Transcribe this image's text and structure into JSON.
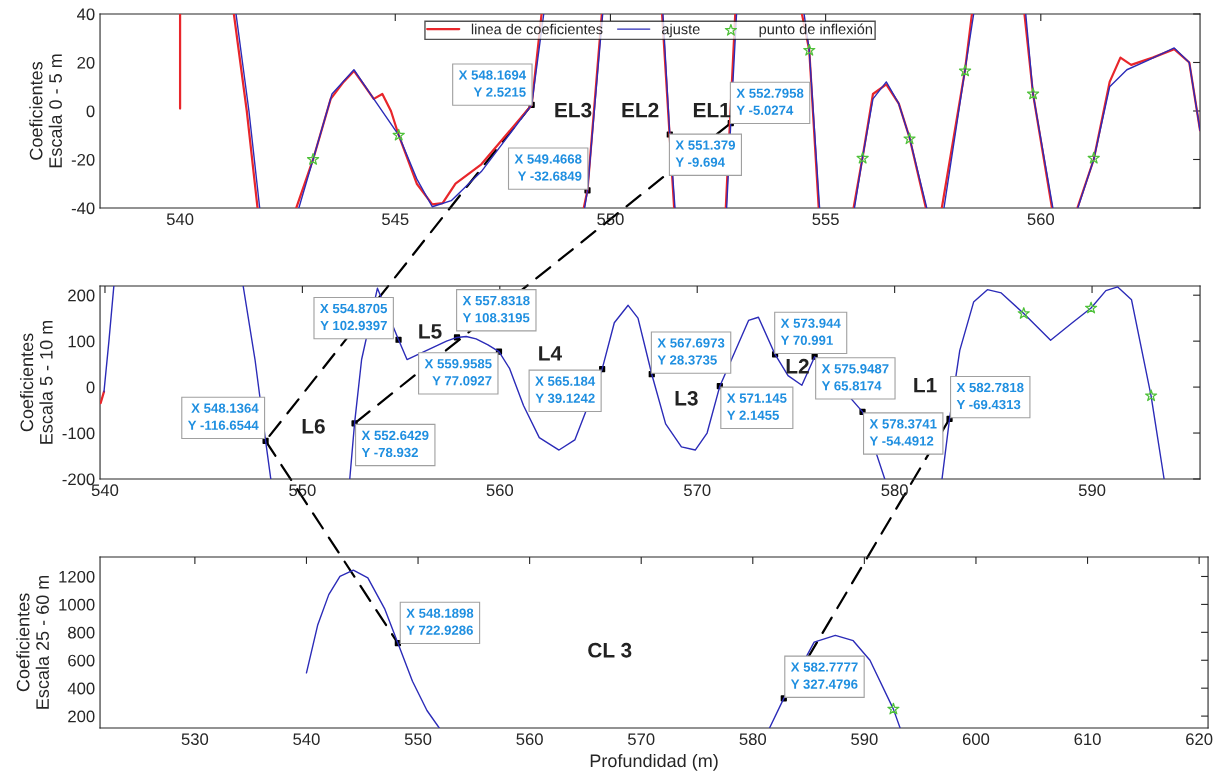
{
  "chart_data": [
    {
      "type": "line",
      "ylabel": "Coeficientes\nEscala 0 - 5 m",
      "xlim": [
        538.14,
        563.7
      ],
      "ylim": [
        -40,
        40
      ],
      "xticks": [
        540,
        545,
        550,
        555,
        560
      ],
      "yticks": [
        -40,
        -20,
        0,
        20,
        40
      ],
      "legend": "top",
      "marker": "none",
      "line_style": "solid",
      "series": [
        {
          "name": "linea de coeficientes",
          "color": "#e8262b",
          "x": [
            540,
            540,
            540.6,
            541.25,
            541.55,
            541.8,
            542.2,
            542.7,
            543.09,
            543.5,
            543.8,
            544.04,
            544.3,
            544.5,
            544.7,
            544.9,
            545.08,
            545.5,
            545.86,
            546.1,
            546.4,
            547.0,
            548.17,
            548.4,
            549.0,
            549.38,
            549.4668,
            549.8,
            550.5,
            551.2,
            551.48,
            552.0,
            552.68,
            552.9,
            553.5,
            554.45,
            554.62,
            554.84,
            555.2,
            555.65,
            555.86,
            556.1,
            556.41,
            556.7,
            556.95,
            557.33,
            557.5,
            557.7,
            558.24,
            558.4,
            559.0,
            559.62,
            559.82,
            560.26,
            560.5,
            560.85,
            561.23,
            561.6,
            561.85,
            562.1,
            562.6,
            563.1,
            563.45,
            563.7
          ],
          "values": [
            1,
            40,
            null,
            40,
            0,
            -40,
            null,
            -40,
            -20,
            5,
            12,
            16.5,
            10,
            5,
            7,
            0,
            -10,
            -30,
            -38.5,
            -38,
            -30,
            -22,
            2.5,
            40,
            null,
            -40,
            -32.7,
            40,
            null,
            40,
            -40,
            null,
            -40,
            40,
            null,
            40,
            25,
            -40,
            null,
            -40,
            -19,
            7,
            11,
            3,
            -11,
            -40,
            null,
            -40,
            17,
            40,
            null,
            40,
            7,
            -40,
            null,
            -40,
            -20,
            12,
            22,
            19,
            22,
            25.5,
            20,
            -8
          ]
        },
        {
          "name": "ajuste",
          "color": "#2b2bb8",
          "x": [
            541.3,
            541.6,
            541.85,
            542.0,
            542.76,
            543.09,
            543.53,
            544.04,
            544.5,
            545.08,
            545.5,
            545.86,
            546.3,
            547.0,
            548.1694,
            548.45,
            549.0,
            549.4,
            549.4668,
            549.82,
            550.5,
            551.22,
            551.379,
            551.5,
            552.0,
            552.7,
            552.7958,
            552.93,
            553.5,
            554.5,
            554.62,
            554.86,
            555.2,
            555.67,
            555.86,
            556.1,
            556.41,
            556.7,
            556.95,
            557.35,
            557.5,
            557.75,
            558.24,
            558.44,
            559.0,
            559.65,
            559.82,
            560.28,
            560.5,
            560.86,
            561.23,
            561.6,
            562.0,
            562.5,
            563.1,
            563.45,
            563.7
          ],
          "values": [
            40,
            0,
            -40,
            null,
            -40,
            -20,
            7,
            17,
            5,
            -10,
            -28,
            -39.5,
            -37,
            -25,
            2.5,
            40,
            null,
            -40,
            -32.7,
            40,
            null,
            40,
            -9.7,
            -40,
            null,
            -40,
            -5,
            40,
            null,
            40,
            25,
            -40,
            null,
            -40,
            -19,
            5,
            12,
            3,
            -11,
            -40,
            null,
            -40,
            17,
            40,
            null,
            40,
            7,
            -40,
            null,
            -40,
            -20,
            10,
            17,
            21,
            26,
            20,
            -8
          ]
        },
        {
          "name": "punto de inflexión",
          "type": "scatter",
          "marker": "star",
          "color": "#4fc13a",
          "x": [
            543.09,
            545.08,
            554.62,
            555.86,
            556.95,
            558.24,
            559.82,
            561.23
          ],
          "values": [
            -20,
            -10,
            25,
            -19.5,
            -11.5,
            16.5,
            7,
            -19.5
          ]
        },
        {
          "type": "scatter",
          "marker": "square",
          "color": "#000000",
          "x": [
            548.1694,
            549.4668,
            551.379,
            552.7958
          ],
          "values": [
            2.5,
            -32.7,
            -9.7,
            -5
          ],
          "value_labels": [
            "X 548.1694\nY 2.5215",
            "X 549.4668\nY -32.6849",
            "X 551.379\nY -9.694",
            "X 552.7958\nY -5.0274"
          ]
        }
      ],
      "annotations": [
        "EL3",
        "EL2",
        "EL1"
      ]
    },
    {
      "type": "line",
      "ylabel": "Coeficientes\nEscala 5 - 10 m",
      "xlim": [
        539.75,
        595.47
      ],
      "ylim": [
        -200,
        220
      ],
      "xticks": [
        540,
        550,
        560,
        570,
        580,
        590
      ],
      "yticks": [
        -200,
        -100,
        0,
        100,
        200
      ],
      "marker": "none",
      "line_style": "solid",
      "series": [
        {
          "color": "#e8262b",
          "x": [
            539.78,
            539.95
          ],
          "values": [
            -35,
            -10
          ]
        },
        {
          "color": "#2b2bb8",
          "x": [
            539.95,
            540.2,
            540.45,
            541,
            547.0,
            547.6,
            548.1364,
            548.4,
            550,
            552.4,
            552.6429,
            553.0,
            553.8,
            554.8705,
            555.3,
            557.3,
            557.8318,
            558.3,
            558.8,
            559.4,
            559.9585,
            560.5,
            561.2,
            562.0,
            563.0,
            563.8,
            565.184,
            565.8,
            566.5,
            567.0,
            567.6973,
            568.4,
            569.2,
            569.9,
            570.5,
            571.145,
            572.6,
            573.1,
            573.944,
            574.6,
            575.3,
            575.9487,
            578.3741,
            579.5,
            581,
            582.4,
            582.7818,
            583.3,
            584.0,
            584.7,
            585.4,
            586.54,
            587.9,
            589.0,
            589.95,
            590.7,
            591.3,
            592.0,
            592.99,
            593.65
          ],
          "values": [
            -10,
            100,
            220,
            null,
            220,
            60,
            -117,
            -200,
            null,
            -200,
            -79,
            60,
            215,
            103,
            60,
            100,
            108,
            110,
            105,
            92,
            77,
            40,
            -40,
            -110,
            -137,
            -115,
            39,
            140,
            178,
            150,
            28,
            -80,
            -130,
            -137,
            -100,
            2,
            145,
            152,
            71,
            25,
            4,
            66,
            -54,
            -200,
            null,
            -200,
            -69,
            80,
            185,
            212,
            205,
            160,
            102,
            140,
            172,
            210,
            218,
            190,
            -19,
            -200
          ]
        },
        {
          "type": "scatter",
          "marker": "star",
          "color": "#4fc13a",
          "x": [
            586.54,
            589.95,
            592.99
          ],
          "values": [
            160,
            172,
            -19
          ]
        },
        {
          "type": "scatter",
          "marker": "square",
          "color": "#000000",
          "x": [
            548.1364,
            552.6429,
            554.8705,
            557.8318,
            559.9585,
            565.184,
            567.6973,
            571.145,
            573.944,
            575.9487,
            578.3741,
            582.7818
          ],
          "values": [
            -117,
            -79,
            103,
            108,
            77,
            39,
            28,
            2,
            71,
            66,
            -54,
            -69
          ],
          "value_labels": [
            "X 548.1364\nY -116.6544",
            "X 552.6429\nY -78.932",
            "X 554.8705\nY 102.9397",
            "X 557.8318\nY 108.3195",
            "X 559.9585\nY 77.0927",
            "X 565.184\nY 39.1242",
            "X 567.6973\nY 28.3735",
            "X 571.145\nY 2.1455",
            "X 573.944\nY 70.991",
            "X 575.9487\nY 65.8174",
            "X 578.3741\nY -54.4912",
            "X 582.7818\nY -69.4313"
          ]
        }
      ],
      "annotations": [
        "L6",
        "L5",
        "L4",
        "L3",
        "L2",
        "L1"
      ]
    },
    {
      "type": "line",
      "ylabel": "Coeficientes\nEscala 25 - 60 m",
      "xlabel": "Profundidad (m)",
      "xlim": [
        521.5,
        620.8
      ],
      "ylim": [
        115,
        1340
      ],
      "xticks": [
        530,
        540,
        550,
        560,
        570,
        580,
        590,
        600,
        610,
        620
      ],
      "yticks": [
        200,
        400,
        600,
        800,
        1000,
        1200
      ],
      "marker": "none",
      "line_style": "solid",
      "series": [
        {
          "color": "#2b2bb8",
          "x": [
            540,
            541,
            542,
            543,
            544.2,
            545.5,
            547,
            548.1898,
            549.5,
            550.8,
            551.9,
            565,
            581.5,
            582.7777,
            585.5,
            587.4,
            589,
            590.5,
            592.6,
            593.2
          ],
          "values": [
            510,
            850,
            1070,
            1200,
            1245,
            1190,
            970,
            723,
            450,
            240,
            115,
            null,
            115,
            327,
            730,
            778,
            740,
            600,
            250,
            115
          ]
        },
        {
          "type": "scatter",
          "marker": "star",
          "color": "#4fc13a",
          "x": [
            592.6
          ],
          "values": [
            250
          ]
        },
        {
          "type": "scatter",
          "marker": "square",
          "color": "#000000",
          "x": [
            548.1898,
            582.7777
          ],
          "values": [
            723,
            327
          ],
          "value_labels": [
            "X 548.1898\nY 722.9286",
            "X 582.7777\nY 327.4796"
          ]
        }
      ],
      "annotations": [
        "CL 3"
      ]
    }
  ]
}
